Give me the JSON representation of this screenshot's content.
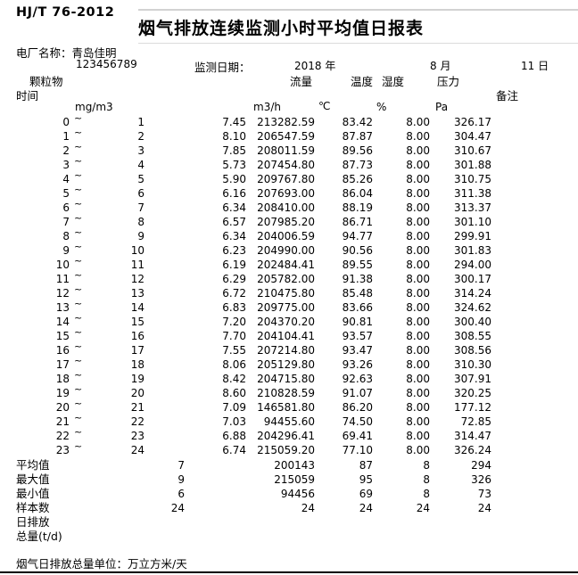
{
  "colors": {
    "text": "#000000",
    "background": "#ffffff",
    "gridline": "#d2d2d2"
  },
  "doc": {
    "standard": "HJ/T 76-2012",
    "title": "烟气排放连续监测小时平均值日报表",
    "plant_label": "电厂名称：青岛佳明",
    "plant_code_mark": "`",
    "plant_code": "123456789",
    "date_label": "监测日期：",
    "date_year": "2018 年",
    "date_month": "8 月",
    "date_day": "11 日",
    "footer_note": "烟气日排放总量单位：万立方米/天"
  },
  "table": {
    "tilde_glyph": "~",
    "headers": {
      "time": "时间",
      "dust": "颗粒物",
      "flow": "流量",
      "temp": "温度",
      "humidity": "湿度",
      "pressure": "压力",
      "remark": "备注",
      "unit_dust": "mg/m3",
      "unit_flow": "m3/h",
      "unit_temp": "℃",
      "unit_humidity": "%",
      "unit_pressure": "Pa"
    },
    "rows": [
      {
        "start": "0",
        "end": "1",
        "dust": "7.45",
        "flow": "213282.59",
        "temp": "83.42",
        "humidity": "8.00",
        "pressure": "326.17"
      },
      {
        "start": "1",
        "end": "2",
        "dust": "8.10",
        "flow": "206547.59",
        "temp": "87.87",
        "humidity": "8.00",
        "pressure": "304.47"
      },
      {
        "start": "2",
        "end": "3",
        "dust": "7.85",
        "flow": "208011.59",
        "temp": "89.56",
        "humidity": "8.00",
        "pressure": "310.67"
      },
      {
        "start": "3",
        "end": "4",
        "dust": "5.73",
        "flow": "207454.80",
        "temp": "87.73",
        "humidity": "8.00",
        "pressure": "301.88"
      },
      {
        "start": "4",
        "end": "5",
        "dust": "5.90",
        "flow": "209767.80",
        "temp": "85.26",
        "humidity": "8.00",
        "pressure": "310.75"
      },
      {
        "start": "5",
        "end": "6",
        "dust": "6.16",
        "flow": "207693.00",
        "temp": "86.04",
        "humidity": "8.00",
        "pressure": "311.38"
      },
      {
        "start": "6",
        "end": "7",
        "dust": "6.34",
        "flow": "208410.00",
        "temp": "88.19",
        "humidity": "8.00",
        "pressure": "313.37"
      },
      {
        "start": "7",
        "end": "8",
        "dust": "6.57",
        "flow": "207985.20",
        "temp": "86.71",
        "humidity": "8.00",
        "pressure": "301.10"
      },
      {
        "start": "8",
        "end": "9",
        "dust": "6.34",
        "flow": "204006.59",
        "temp": "94.77",
        "humidity": "8.00",
        "pressure": "299.91"
      },
      {
        "start": "9",
        "end": "10",
        "dust": "6.23",
        "flow": "204990.00",
        "temp": "90.56",
        "humidity": "8.00",
        "pressure": "301.83"
      },
      {
        "start": "10",
        "end": "11",
        "dust": "6.19",
        "flow": "202484.41",
        "temp": "89.55",
        "humidity": "8.00",
        "pressure": "294.00"
      },
      {
        "start": "11",
        "end": "12",
        "dust": "6.29",
        "flow": "205782.00",
        "temp": "91.38",
        "humidity": "8.00",
        "pressure": "300.17"
      },
      {
        "start": "12",
        "end": "13",
        "dust": "6.72",
        "flow": "210475.80",
        "temp": "85.48",
        "humidity": "8.00",
        "pressure": "314.24"
      },
      {
        "start": "13",
        "end": "14",
        "dust": "6.83",
        "flow": "209775.00",
        "temp": "83.66",
        "humidity": "8.00",
        "pressure": "324.62"
      },
      {
        "start": "14",
        "end": "15",
        "dust": "7.20",
        "flow": "204370.20",
        "temp": "90.81",
        "humidity": "8.00",
        "pressure": "300.40"
      },
      {
        "start": "15",
        "end": "16",
        "dust": "7.70",
        "flow": "204104.41",
        "temp": "93.57",
        "humidity": "8.00",
        "pressure": "308.55"
      },
      {
        "start": "16",
        "end": "17",
        "dust": "7.55",
        "flow": "207214.80",
        "temp": "93.47",
        "humidity": "8.00",
        "pressure": "308.56"
      },
      {
        "start": "17",
        "end": "18",
        "dust": "8.06",
        "flow": "205129.80",
        "temp": "93.26",
        "humidity": "8.00",
        "pressure": "310.30"
      },
      {
        "start": "18",
        "end": "19",
        "dust": "8.42",
        "flow": "204715.80",
        "temp": "92.63",
        "humidity": "8.00",
        "pressure": "307.91"
      },
      {
        "start": "19",
        "end": "20",
        "dust": "8.60",
        "flow": "210828.59",
        "temp": "91.07",
        "humidity": "8.00",
        "pressure": "320.25"
      },
      {
        "start": "20",
        "end": "21",
        "dust": "7.09",
        "flow": "146581.80",
        "temp": "86.20",
        "humidity": "8.00",
        "pressure": "177.12"
      },
      {
        "start": "21",
        "end": "22",
        "dust": "7.03",
        "flow": "94455.60",
        "temp": "74.50",
        "humidity": "8.00",
        "pressure": "72.85"
      },
      {
        "start": "22",
        "end": "23",
        "dust": "6.88",
        "flow": "204296.41",
        "temp": "69.41",
        "humidity": "8.00",
        "pressure": "314.47"
      },
      {
        "start": "23",
        "end": "24",
        "dust": "6.74",
        "flow": "215059.20",
        "temp": "77.10",
        "humidity": "8.00",
        "pressure": "326.24"
      }
    ],
    "summary": [
      {
        "label": "平均值",
        "c1": "7",
        "flow": "200143",
        "temp": "87",
        "humidity": "8",
        "pressure": "294"
      },
      {
        "label": "最大值",
        "c1": "9",
        "flow": "215059",
        "temp": "95",
        "humidity": "8",
        "pressure": "326"
      },
      {
        "label": "最小值",
        "c1": "6",
        "flow": "94456",
        "temp": "69",
        "humidity": "8",
        "pressure": "73"
      },
      {
        "label": "样本数",
        "c1": "24",
        "flow": "24",
        "temp": "24",
        "humidity": "24",
        "pressure": "24"
      },
      {
        "label": "日排放",
        "c1": "",
        "flow": "",
        "temp": "",
        "humidity": "",
        "pressure": ""
      },
      {
        "label": "总量(t/d)",
        "c1": "",
        "flow": "",
        "temp": "",
        "humidity": "",
        "pressure": ""
      }
    ]
  }
}
